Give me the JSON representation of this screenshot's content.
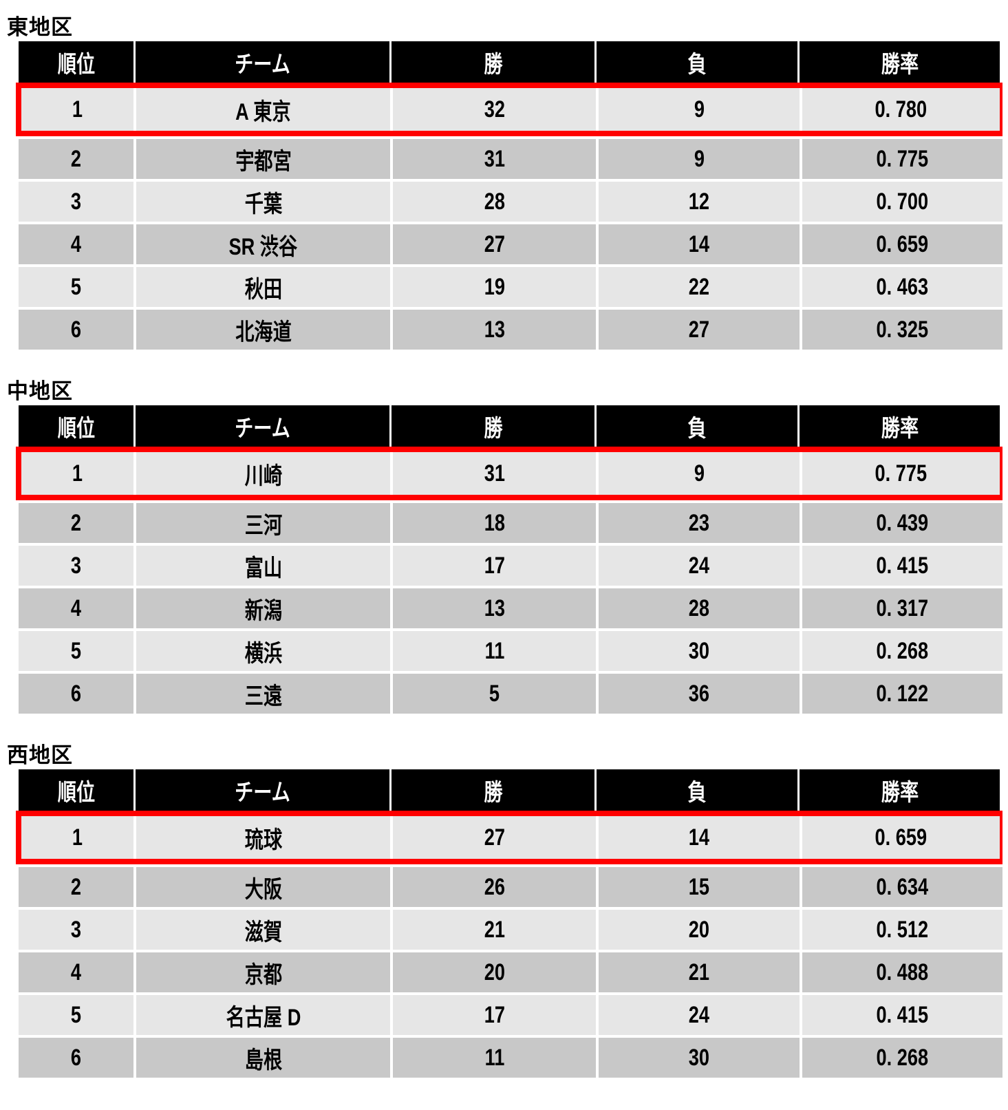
{
  "columns": [
    "順位",
    "チーム",
    "勝",
    "負",
    "勝率"
  ],
  "highlight_color": "#ff0000",
  "divisions": [
    {
      "title": "東地区",
      "rows": [
        {
          "rank": "1",
          "team": "A 東京",
          "wins": "32",
          "losses": "9",
          "pct": "0. 780",
          "highlighted": true
        },
        {
          "rank": "2",
          "team": "宇都宮",
          "wins": "31",
          "losses": "9",
          "pct": "0. 775"
        },
        {
          "rank": "3",
          "team": "千葉",
          "wins": "28",
          "losses": "12",
          "pct": "0. 700"
        },
        {
          "rank": "4",
          "team": "SR 渋谷",
          "wins": "27",
          "losses": "14",
          "pct": "0. 659"
        },
        {
          "rank": "5",
          "team": "秋田",
          "wins": "19",
          "losses": "22",
          "pct": "0. 463"
        },
        {
          "rank": "6",
          "team": "北海道",
          "wins": "13",
          "losses": "27",
          "pct": "0. 325"
        }
      ]
    },
    {
      "title": "中地区",
      "rows": [
        {
          "rank": "1",
          "team": "川崎",
          "wins": "31",
          "losses": "9",
          "pct": "0. 775",
          "highlighted": true
        },
        {
          "rank": "2",
          "team": "三河",
          "wins": "18",
          "losses": "23",
          "pct": "0. 439"
        },
        {
          "rank": "3",
          "team": "富山",
          "wins": "17",
          "losses": "24",
          "pct": "0. 415"
        },
        {
          "rank": "4",
          "team": "新潟",
          "wins": "13",
          "losses": "28",
          "pct": "0. 317"
        },
        {
          "rank": "5",
          "team": "横浜",
          "wins": "11",
          "losses": "30",
          "pct": "0. 268"
        },
        {
          "rank": "6",
          "team": "三遠",
          "wins": "5",
          "losses": "36",
          "pct": "0. 122"
        }
      ]
    },
    {
      "title": "西地区",
      "rows": [
        {
          "rank": "1",
          "team": "琉球",
          "wins": "27",
          "losses": "14",
          "pct": "0. 659",
          "highlighted": true
        },
        {
          "rank": "2",
          "team": "大阪",
          "wins": "26",
          "losses": "15",
          "pct": "0. 634"
        },
        {
          "rank": "3",
          "team": "滋賀",
          "wins": "21",
          "losses": "20",
          "pct": "0. 512"
        },
        {
          "rank": "4",
          "team": "京都",
          "wins": "20",
          "losses": "21",
          "pct": "0. 488"
        },
        {
          "rank": "5",
          "team": "名古屋 D",
          "wins": "17",
          "losses": "24",
          "pct": "0. 415"
        },
        {
          "rank": "6",
          "team": "島根",
          "wins": "11",
          "losses": "30",
          "pct": "0. 268"
        }
      ]
    }
  ]
}
